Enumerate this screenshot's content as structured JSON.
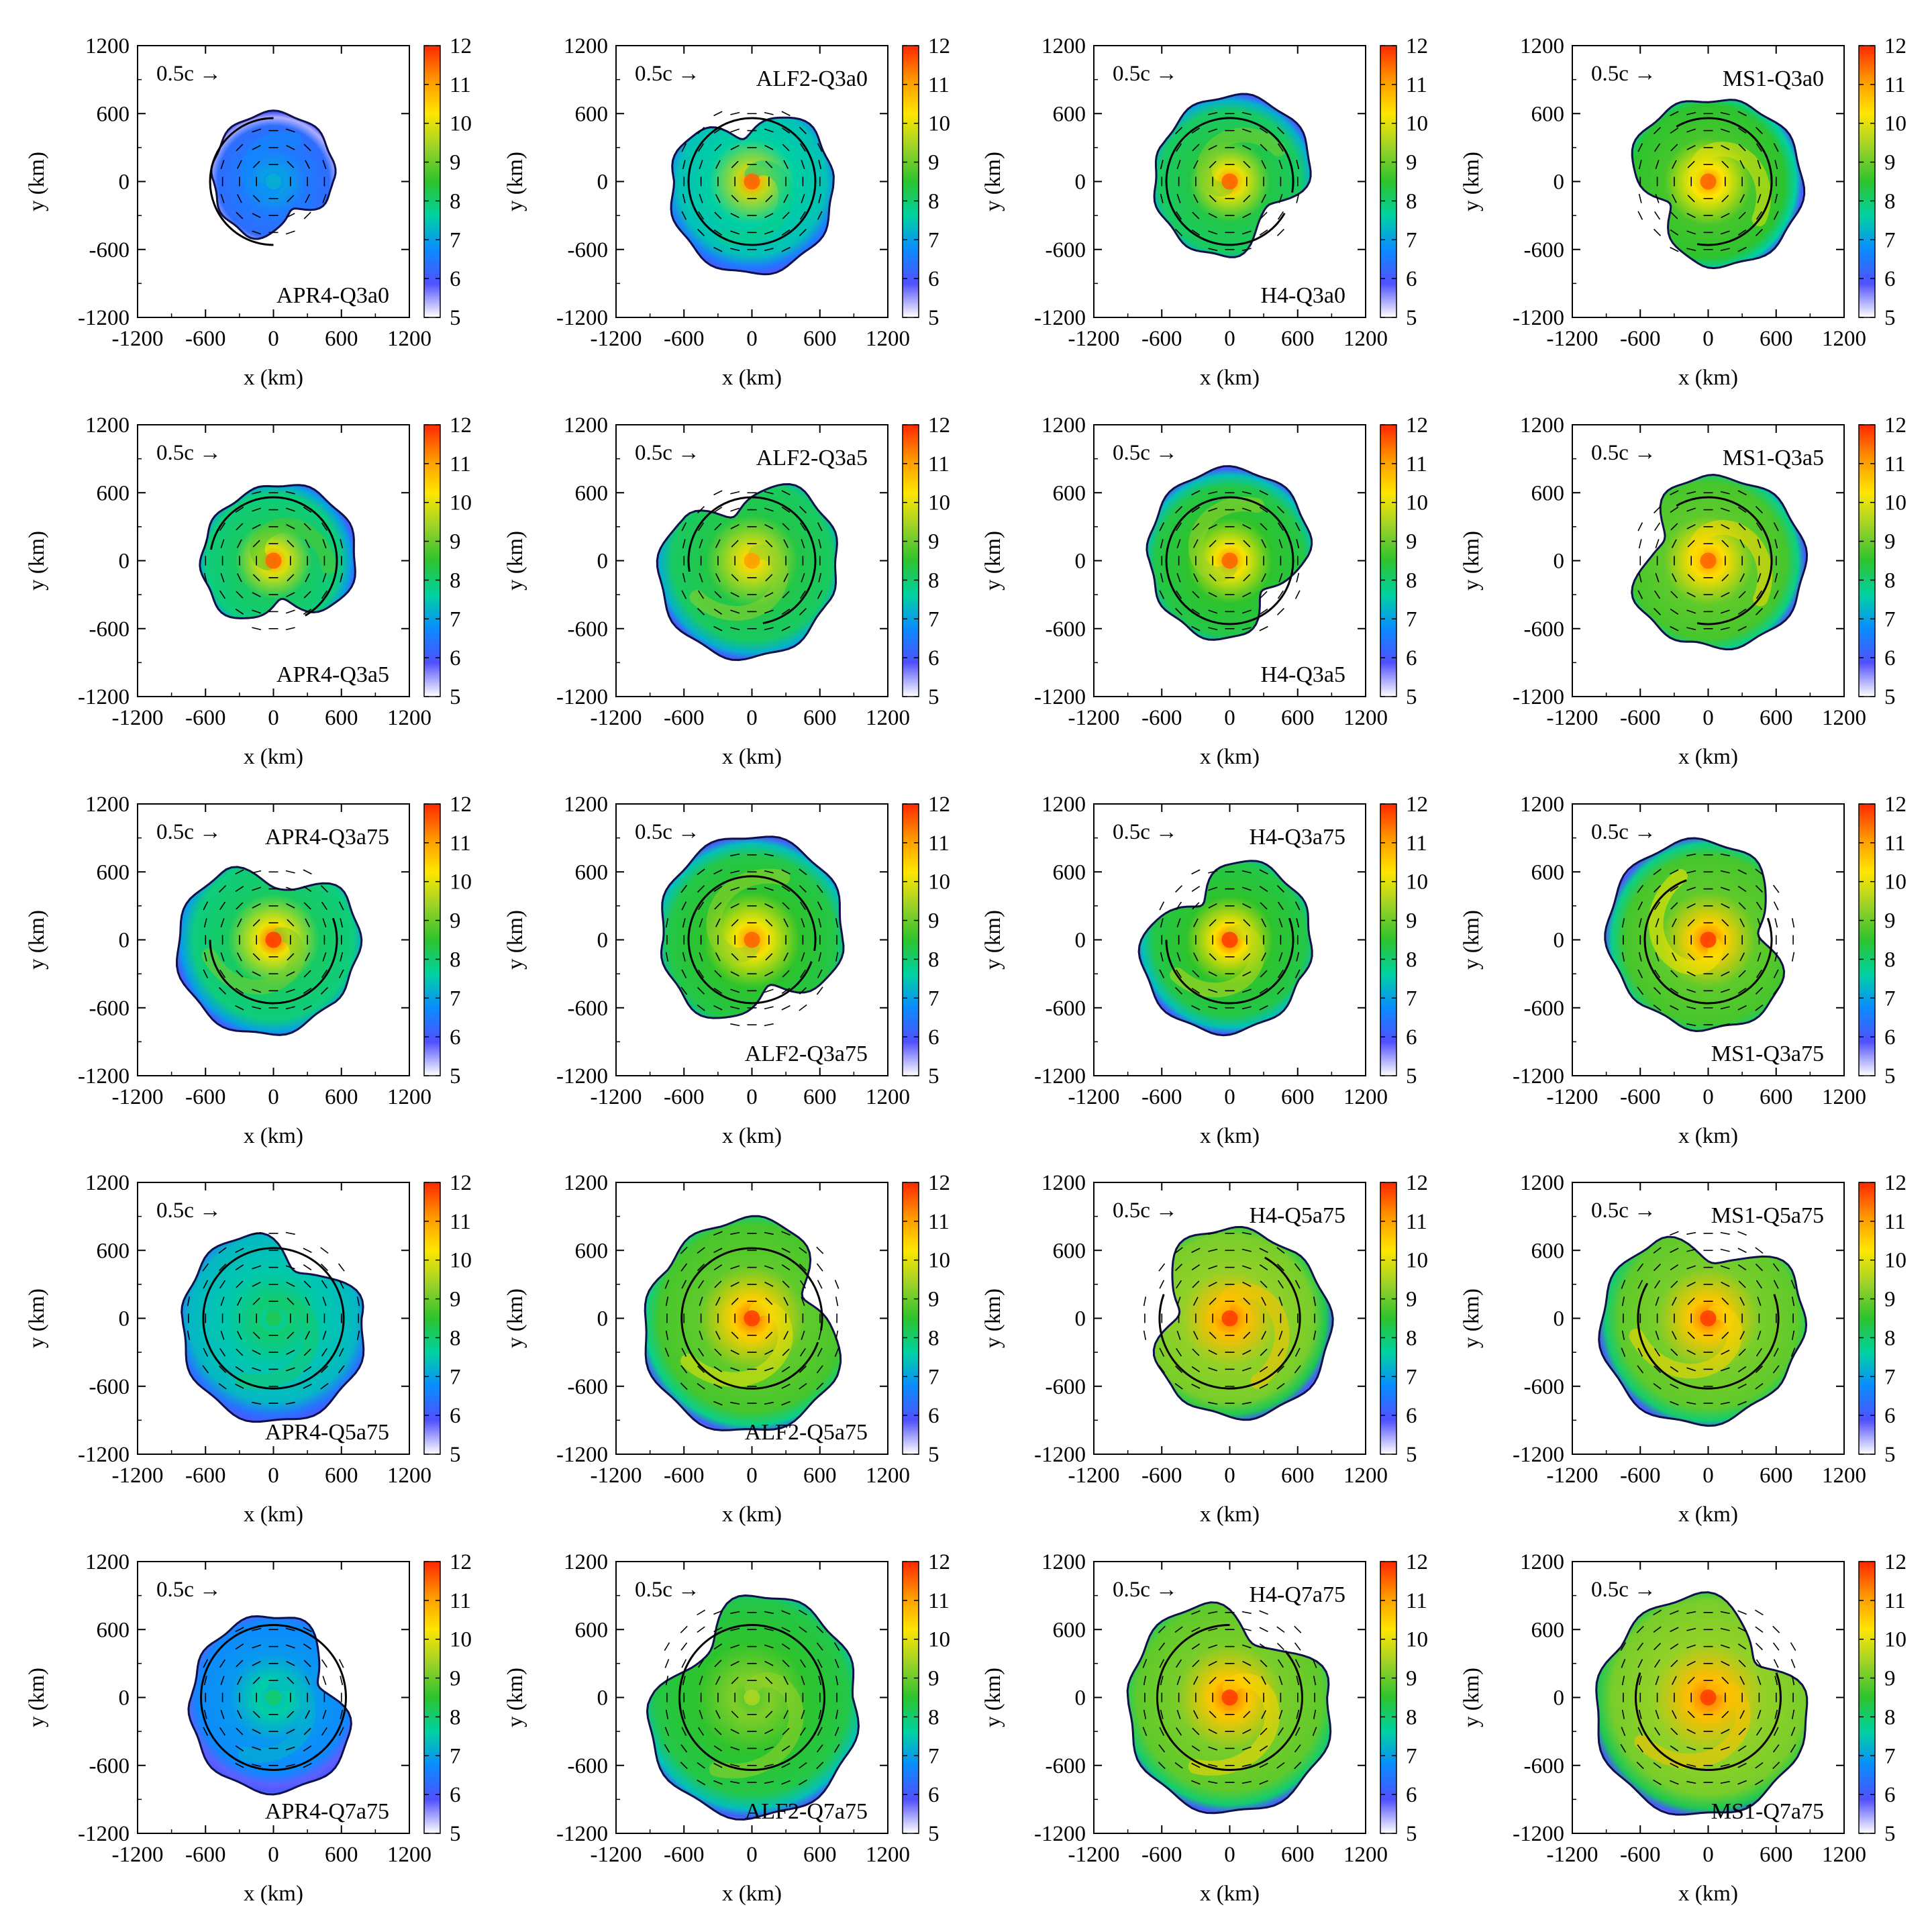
{
  "chart_data": {
    "type": "heatmap",
    "description_unit": "km",
    "layout": {
      "rows": 5,
      "cols": 4
    },
    "xlabel": "x (km)",
    "ylabel": "y (km)",
    "xlim": [
      -1200,
      1200
    ],
    "ylim": [
      -1200,
      1200
    ],
    "xticks": [
      -1200,
      -600,
      0,
      600,
      1200
    ],
    "yticks": [
      -1200,
      -600,
      0,
      600,
      1200
    ],
    "xtick_labels": [
      "-1200",
      "-600",
      "0",
      "600",
      "1200"
    ],
    "ytick_labels": [
      "-1200",
      "-600",
      "0",
      "600",
      "1200"
    ],
    "colorbar": {
      "range": [
        5,
        12
      ],
      "ticks": [
        5,
        6,
        7,
        8,
        9,
        10,
        11,
        12
      ],
      "tick_labels": [
        "5",
        "6",
        "7",
        "8",
        "9",
        "10",
        "11",
        "12"
      ],
      "colors": [
        "#ffffff",
        "#5050ff",
        "#0a8cff",
        "#00d2a0",
        "#2dc32d",
        "#9bd228",
        "#ffe600",
        "#ff9600",
        "#ff2800"
      ]
    },
    "velocity_reference": {
      "label": "0.5c",
      "arrow": "→"
    },
    "panels": [
      {
        "name": "APR4-Q3a0",
        "label_pos": "bottom-right",
        "extent": 600,
        "circle_r": 560,
        "center_val": 7.2,
        "edge_val": 6.4,
        "spiral": 0.2,
        "lobe_angle": 90,
        "notch_angle": -60,
        "arc": [
          90,
          270
        ],
        "ref_visible": true
      },
      {
        "name": "ALF2-Q3a0",
        "label_pos": "top-right",
        "extent": 800,
        "circle_r": 560,
        "center_val": 11.5,
        "edge_val": 7.5,
        "spiral": 0.2,
        "lobe_angle": -90,
        "notch_angle": 100,
        "arc": [
          0,
          360
        ],
        "ref_visible": true
      },
      {
        "name": "H4-Q3a0",
        "label_pos": "bottom-right",
        "extent": 760,
        "circle_r": 560,
        "center_val": 11.5,
        "edge_val": 8.2,
        "spiral": 0.6,
        "lobe_angle": 60,
        "notch_angle": -40,
        "arc": [
          -10,
          330
        ],
        "ref_visible": true
      },
      {
        "name": "MS1-Q3a0",
        "label_pos": "top-right",
        "extent": 820,
        "circle_r": 560,
        "center_val": 11.5,
        "edge_val": 8.6,
        "spiral": 0.9,
        "lobe_angle": -10,
        "notch_angle": -150,
        "arc": [
          -100,
          120
        ],
        "ref_visible": true
      },
      {
        "name": "APR4-Q3a5",
        "label_pos": "bottom-right",
        "extent": 720,
        "circle_r": 560,
        "center_val": 11.5,
        "edge_val": 8.0,
        "spiral": 0.5,
        "lobe_angle": 20,
        "notch_angle": -80,
        "arc": [
          -60,
          170
        ],
        "ref_visible": true
      },
      {
        "name": "ALF2-Q3a5",
        "label_pos": "top-right",
        "extent": 860,
        "circle_r": 560,
        "center_val": 11.0,
        "edge_val": 8.2,
        "spiral": 0.7,
        "lobe_angle": -120,
        "notch_angle": 110,
        "arc": [
          -80,
          190
        ],
        "ref_visible": true
      },
      {
        "name": "H4-Q3a5",
        "label_pos": "bottom-right",
        "extent": 800,
        "circle_r": 560,
        "center_val": 11.5,
        "edge_val": 8.4,
        "spiral": 0.6,
        "lobe_angle": 90,
        "notch_angle": -40,
        "arc": [
          -20,
          340
        ],
        "ref_visible": true
      },
      {
        "name": "MS1-Q3a5",
        "label_pos": "top-right",
        "extent": 840,
        "circle_r": 560,
        "center_val": 11.5,
        "edge_val": 8.8,
        "spiral": 1.0,
        "lobe_angle": -10,
        "notch_angle": 160,
        "arc": [
          -100,
          120
        ],
        "ref_visible": true
      },
      {
        "name": "APR4-Q3a75",
        "label_pos": "top-right",
        "extent": 860,
        "circle_r": 560,
        "center_val": 11.8,
        "edge_val": 8.0,
        "spiral": 0.7,
        "lobe_angle": -140,
        "notch_angle": 80,
        "arc": [
          -180,
          20
        ],
        "ref_visible": true
      },
      {
        "name": "ALF2-Q3a75",
        "label_pos": "bottom-right",
        "extent": 900,
        "circle_r": 560,
        "center_val": 11.5,
        "edge_val": 8.4,
        "spiral": 0.6,
        "lobe_angle": 90,
        "notch_angle": -70,
        "arc": [
          -10,
          340
        ],
        "ref_visible": true
      },
      {
        "name": "H4-Q3a75",
        "label_pos": "top-right",
        "extent": 820,
        "circle_r": 560,
        "center_val": 11.8,
        "edge_val": 8.4,
        "spiral": 0.8,
        "lobe_angle": -120,
        "notch_angle": 130,
        "arc": [
          -180,
          20
        ],
        "ref_visible": true
      },
      {
        "name": "MS1-Q3a75",
        "label_pos": "bottom-right",
        "extent": 900,
        "circle_r": 560,
        "center_val": 11.8,
        "edge_val": 8.8,
        "spiral": 0.9,
        "lobe_angle": 140,
        "notch_angle": 10,
        "arc": [
          -250,
          20
        ],
        "ref_visible": true
      },
      {
        "name": "APR4-Q5a75",
        "label_pos": "bottom-right",
        "extent": 900,
        "circle_r": 620,
        "center_val": 8.2,
        "edge_val": 7.4,
        "spiral": 0.4,
        "lobe_angle": -90,
        "notch_angle": 60,
        "arc": [
          0,
          360
        ],
        "ref_visible": true
      },
      {
        "name": "ALF2-Q5a75",
        "label_pos": "bottom-right",
        "extent": 1000,
        "circle_r": 620,
        "center_val": 11.8,
        "edge_val": 8.8,
        "spiral": 0.8,
        "lobe_angle": -120,
        "notch_angle": 20,
        "arc": [
          -10,
          340
        ],
        "ref_visible": false
      },
      {
        "name": "H4-Q5a75",
        "label_pos": "top-right",
        "extent": 900,
        "circle_r": 620,
        "center_val": 11.8,
        "edge_val": 9.2,
        "spiral": 0.9,
        "lobe_angle": -40,
        "notch_angle": 170,
        "arc": [
          -200,
          60
        ],
        "ref_visible": true
      },
      {
        "name": "MS1-Q5a75",
        "label_pos": "top-right",
        "extent": 960,
        "circle_r": 620,
        "center_val": 11.8,
        "edge_val": 9.0,
        "spiral": 0.9,
        "lobe_angle": -140,
        "notch_angle": 80,
        "arc": [
          -210,
          20
        ],
        "ref_visible": true
      },
      {
        "name": "APR4-Q7a75",
        "label_pos": "bottom-right",
        "extent": 820,
        "circle_r": 640,
        "center_val": 8.0,
        "edge_val": 6.8,
        "spiral": 0.3,
        "lobe_angle": -90,
        "notch_angle": 20,
        "arc": [
          0,
          360
        ],
        "ref_visible": true
      },
      {
        "name": "ALF2-Q7a75",
        "label_pos": "bottom-right",
        "extent": 1040,
        "circle_r": 640,
        "center_val": 9.5,
        "edge_val": 8.4,
        "spiral": 0.6,
        "lobe_angle": -90,
        "notch_angle": 140,
        "arc": [
          0,
          360
        ],
        "ref_visible": true
      },
      {
        "name": "H4-Q7a75",
        "label_pos": "top-right",
        "extent": 1000,
        "circle_r": 640,
        "center_val": 11.8,
        "edge_val": 9.0,
        "spiral": 0.9,
        "lobe_angle": -90,
        "notch_angle": 60,
        "arc": [
          -270,
          40
        ],
        "ref_visible": true
      },
      {
        "name": "MS1-Q7a75",
        "label_pos": "bottom-right",
        "extent": 1040,
        "circle_r": 640,
        "center_val": 11.8,
        "edge_val": 9.2,
        "spiral": 0.9,
        "lobe_angle": -120,
        "notch_angle": 40,
        "arc": [
          -200,
          20
        ],
        "ref_visible": true
      }
    ]
  }
}
